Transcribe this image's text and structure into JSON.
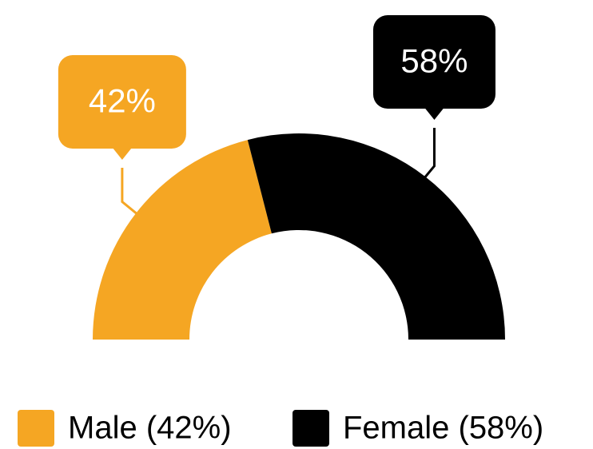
{
  "chart_data": {
    "type": "semidonut",
    "categories": [
      "Male (42%)",
      "Female (58%)"
    ],
    "values": [
      42,
      58
    ],
    "value_labels": [
      "42%",
      "58%"
    ],
    "colors": [
      "#f5a623",
      "#000000"
    ]
  }
}
